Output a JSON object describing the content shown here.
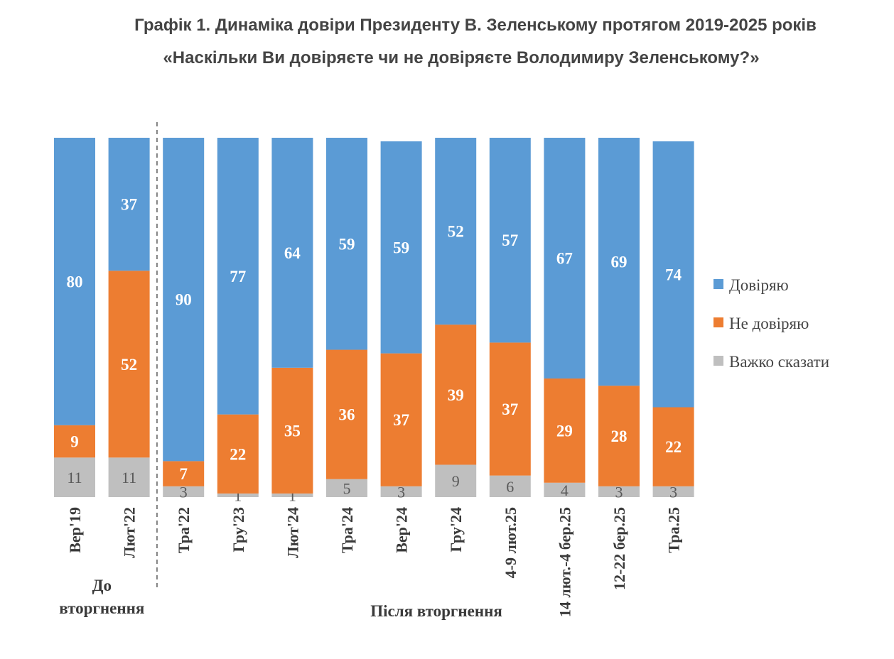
{
  "title_line1": "Графік 1. Динаміка довіри Президенту В. Зеленському протягом 2019-2025 років",
  "title_line2": "«Наскільки Ви довіряєте чи не довіряєте Володимиру Зеленському?»",
  "chart_data": {
    "type": "bar",
    "stacked": true,
    "categories": [
      "Вер'19",
      "Лют'22",
      "Тра'22",
      "Гру'23",
      "Лют'24",
      "Тра'24",
      "Вер'24",
      "Гру'24",
      "4-9 лют.25",
      "14 лют.-4 бер.25",
      "12-22 бер.25",
      "Тра.25"
    ],
    "series": [
      {
        "name": "Довіряю",
        "color": "#5b9bd5",
        "values": [
          80,
          37,
          90,
          77,
          64,
          59,
          59,
          52,
          57,
          67,
          69,
          74
        ]
      },
      {
        "name": "Не довіряю",
        "color": "#ed7d31",
        "values": [
          9,
          52,
          7,
          22,
          35,
          36,
          37,
          39,
          37,
          29,
          28,
          22
        ]
      },
      {
        "name": "Важко сказати",
        "color": "#bfbfbf",
        "values": [
          11,
          11,
          3,
          1,
          1,
          5,
          3,
          9,
          6,
          4,
          3,
          3
        ]
      }
    ],
    "ylim": [
      0,
      100
    ],
    "legend_position": "right",
    "groups": [
      {
        "label_lines": [
          "До",
          "вторгнення"
        ],
        "categories": [
          0,
          1
        ]
      },
      {
        "label_lines": [
          "Після вторгнення"
        ],
        "categories": [
          2,
          3,
          4,
          5,
          6,
          7,
          8,
          9,
          10,
          11
        ]
      }
    ],
    "divider_after_category": 1
  }
}
